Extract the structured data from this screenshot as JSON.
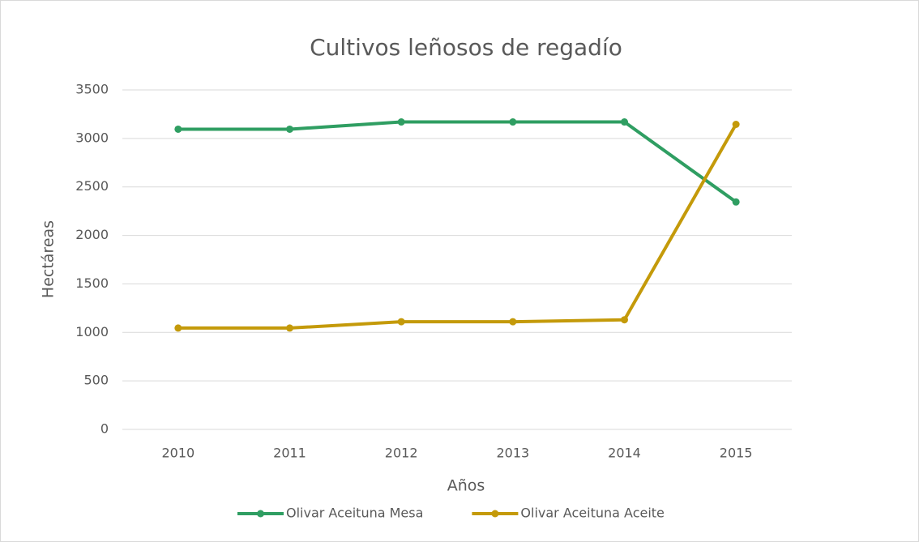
{
  "chart_data": {
    "type": "line",
    "title": "Cultivos leñosos de regadío",
    "x_label": "Años",
    "y_label": "Hectáreas",
    "categories": [
      "2010",
      "2011",
      "2012",
      "2013",
      "2014",
      "2015"
    ],
    "series": [
      {
        "name": "Olivar Aceituna Mesa",
        "color": "#2f9e62",
        "values": [
          3095,
          3095,
          3170,
          3170,
          3170,
          2345
        ]
      },
      {
        "name": "Olivar Aceituna Aceite",
        "color": "#c49a0a",
        "values": [
          1045,
          1045,
          1110,
          1110,
          1130,
          3145
        ]
      }
    ],
    "ylim": [
      0,
      3500
    ],
    "yticks": [
      0,
      500,
      1000,
      1500,
      2000,
      2500,
      3000,
      3500
    ],
    "grid": true,
    "legend": "bottom"
  }
}
